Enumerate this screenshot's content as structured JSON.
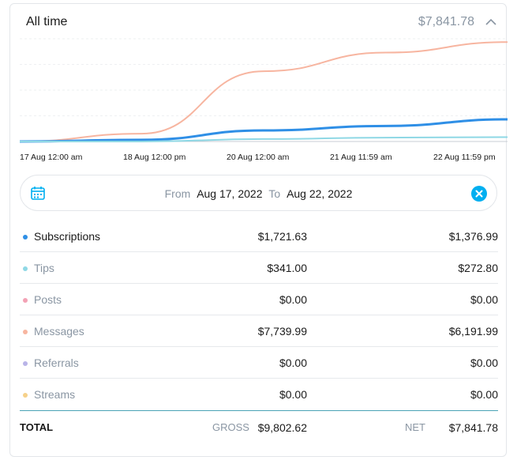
{
  "header": {
    "title": "All time",
    "total": "$7,841.78"
  },
  "colors": {
    "subscriptions": "#2f8fe6",
    "tips": "#8fd8e5",
    "posts": "#f3a2b5",
    "messages": "#f7b5a0",
    "referrals": "#b9b4e8",
    "streams": "#f6d18a",
    "accent": "#00aff0"
  },
  "chart_data": {
    "type": "line",
    "x": [
      "17 Aug 12:00 am",
      "18 Aug 12:00 pm",
      "20 Aug 12:00 am",
      "21 Aug 11:59 am",
      "22 Aug 11:59 pm"
    ],
    "series": [
      {
        "name": "Messages",
        "values": [
          0,
          610,
          5470,
          6920,
          7740
        ],
        "color": "#f7b5a0"
      },
      {
        "name": "Subscriptions",
        "values": [
          0,
          130,
          860,
          1210,
          1722
        ],
        "color": "#2f8fe6"
      },
      {
        "name": "Tips",
        "values": [
          0,
          0,
          190,
          300,
          341
        ],
        "color": "#8fd8e5"
      }
    ],
    "ylim": [
      0,
      8000
    ]
  },
  "date_range": {
    "from_label": "From",
    "from": "Aug 17, 2022",
    "to_label": "To",
    "to": "Aug 22, 2022"
  },
  "rows": [
    {
      "label": "Subscriptions",
      "gross": "$1,721.63",
      "net": "$1,376.99",
      "active": true
    },
    {
      "label": "Tips",
      "gross": "$341.00",
      "net": "$272.80",
      "active": false
    },
    {
      "label": "Posts",
      "gross": "$0.00",
      "net": "$0.00",
      "active": false
    },
    {
      "label": "Messages",
      "gross": "$7,739.99",
      "net": "$6,191.99",
      "active": false
    },
    {
      "label": "Referrals",
      "gross": "$0.00",
      "net": "$0.00",
      "active": false
    },
    {
      "label": "Streams",
      "gross": "$0.00",
      "net": "$0.00",
      "active": false
    }
  ],
  "totals": {
    "label": "TOTAL",
    "gross_label": "GROSS",
    "gross": "$9,802.62",
    "net_label": "NET",
    "net": "$7,841.78"
  }
}
